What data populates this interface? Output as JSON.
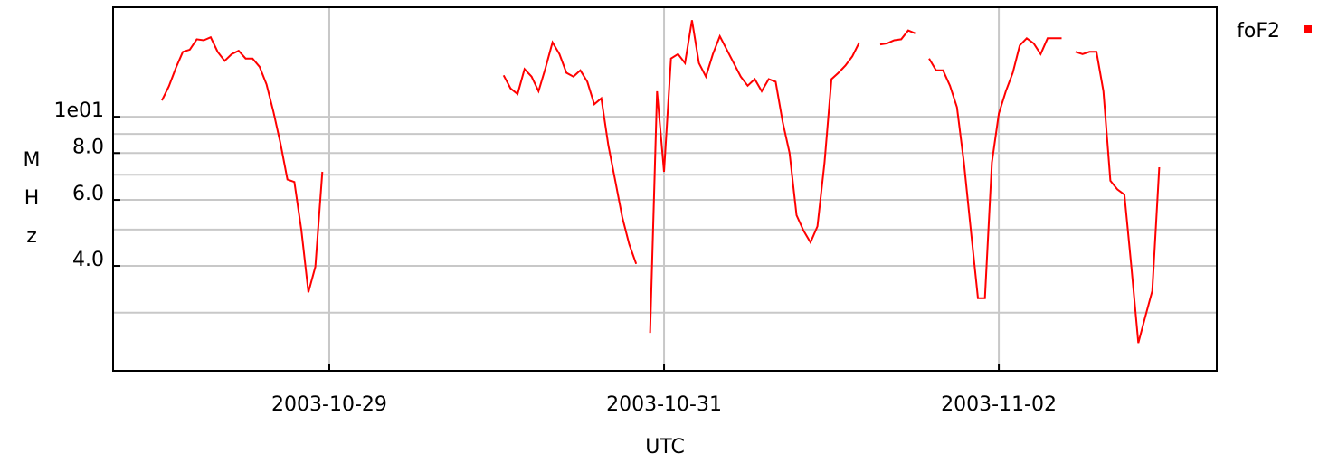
{
  "chart_data": {
    "type": "line",
    "log_y": true,
    "grid": true,
    "legend": "top-right",
    "xlabel": "UTC",
    "ylabel": "MHz",
    "xlim": [
      "2003-10-27T17:00Z",
      "2003-11-03T07:15Z"
    ],
    "xticks": [
      "2003-10-29",
      "2003-10-31",
      "2003-11-02"
    ],
    "ylim": [
      2.1,
      19.6
    ],
    "yticks": [
      {
        "value": 10,
        "label": "1e01"
      },
      {
        "value": 8,
        "label": "8.0"
      },
      {
        "value": 6,
        "label": "6.0"
      },
      {
        "value": 4,
        "label": "4.0"
      }
    ],
    "yminor": [
      9,
      7,
      5,
      3
    ],
    "x": [
      "2003-10-28T00:00Z",
      "2003-10-28T01:00Z",
      "2003-10-28T02:00Z",
      "2003-10-28T03:00Z",
      "2003-10-28T04:00Z",
      "2003-10-28T05:00Z",
      "2003-10-28T06:00Z",
      "2003-10-28T07:00Z",
      "2003-10-28T08:00Z",
      "2003-10-28T09:00Z",
      "2003-10-28T10:00Z",
      "2003-10-28T11:00Z",
      "2003-10-28T12:00Z",
      "2003-10-28T13:00Z",
      "2003-10-28T14:00Z",
      "2003-10-28T15:00Z",
      "2003-10-28T16:00Z",
      "2003-10-28T17:00Z",
      "2003-10-28T18:00Z",
      "2003-10-28T19:00Z",
      "2003-10-28T20:00Z",
      "2003-10-28T21:00Z",
      "2003-10-28T22:00Z",
      "2003-10-28T23:00Z",
      "2003-10-29T12:00Z",
      "2003-10-30T01:00Z",
      "2003-10-30T02:00Z",
      "2003-10-30T03:00Z",
      "2003-10-30T04:00Z",
      "2003-10-30T05:00Z",
      "2003-10-30T06:00Z",
      "2003-10-30T07:00Z",
      "2003-10-30T08:00Z",
      "2003-10-30T09:00Z",
      "2003-10-30T10:00Z",
      "2003-10-30T11:00Z",
      "2003-10-30T12:00Z",
      "2003-10-30T13:00Z",
      "2003-10-30T14:00Z",
      "2003-10-30T15:00Z",
      "2003-10-30T16:00Z",
      "2003-10-30T17:00Z",
      "2003-10-30T18:00Z",
      "2003-10-30T19:00Z",
      "2003-10-30T20:00Z",
      "2003-10-30T21:00Z",
      "2003-10-30T22:00Z",
      "2003-10-30T23:00Z",
      "2003-10-31T00:00Z",
      "2003-10-31T01:00Z",
      "2003-10-31T02:00Z",
      "2003-10-31T03:00Z",
      "2003-10-31T04:00Z",
      "2003-10-31T05:00Z",
      "2003-10-31T06:00Z",
      "2003-10-31T07:00Z",
      "2003-10-31T08:00Z",
      "2003-10-31T09:00Z",
      "2003-10-31T10:00Z",
      "2003-10-31T11:00Z",
      "2003-10-31T12:00Z",
      "2003-10-31T13:00Z",
      "2003-10-31T14:00Z",
      "2003-10-31T15:00Z",
      "2003-10-31T16:00Z",
      "2003-10-31T17:00Z",
      "2003-10-31T18:00Z",
      "2003-10-31T19:00Z",
      "2003-10-31T20:00Z",
      "2003-10-31T21:00Z",
      "2003-10-31T22:00Z",
      "2003-10-31T23:00Z",
      "2003-11-01T00:00Z",
      "2003-11-01T01:00Z",
      "2003-11-01T02:00Z",
      "2003-11-01T03:00Z",
      "2003-11-01T04:00Z",
      "2003-11-01T05:00Z",
      "2003-11-01T07:00Z",
      "2003-11-01T08:00Z",
      "2003-11-01T09:00Z",
      "2003-11-01T10:00Z",
      "2003-11-01T11:00Z",
      "2003-11-01T12:00Z",
      "2003-11-01T13:00Z",
      "2003-11-01T14:00Z",
      "2003-11-01T15:00Z",
      "2003-11-01T16:00Z",
      "2003-11-01T17:00Z",
      "2003-11-01T18:00Z",
      "2003-11-01T19:00Z",
      "2003-11-01T20:00Z",
      "2003-11-01T21:00Z",
      "2003-11-01T22:00Z",
      "2003-11-01T23:00Z",
      "2003-11-02T00:00Z",
      "2003-11-02T01:00Z",
      "2003-11-02T02:00Z",
      "2003-11-02T03:00Z",
      "2003-11-02T04:00Z",
      "2003-11-02T05:00Z",
      "2003-11-02T06:00Z",
      "2003-11-02T07:00Z",
      "2003-11-02T08:00Z",
      "2003-11-02T09:00Z",
      "2003-11-02T10:00Z",
      "2003-11-02T11:00Z",
      "2003-11-02T12:00Z",
      "2003-11-02T13:00Z",
      "2003-11-02T14:00Z",
      "2003-11-02T15:00Z",
      "2003-11-02T16:00Z",
      "2003-11-02T17:00Z",
      "2003-11-02T18:00Z",
      "2003-11-02T19:00Z",
      "2003-11-02T20:00Z",
      "2003-11-02T21:00Z",
      "2003-11-02T22:00Z",
      "2003-11-02T23:00Z"
    ],
    "series": [
      {
        "name": "foF2",
        "color": "#ff0000",
        "values": [
          11.05,
          12.07,
          13.5,
          14.9,
          15.1,
          16.1,
          16.0,
          16.3,
          14.9,
          14.1,
          14.7,
          15.0,
          14.3,
          14.3,
          13.6,
          12.2,
          10.3,
          8.5,
          6.8,
          6.7,
          4.97,
          3.4,
          3.98,
          7.13,
          null,
          12.9,
          11.9,
          11.5,
          13.4,
          12.8,
          11.7,
          13.5,
          15.8,
          14.7,
          13.1,
          12.8,
          13.3,
          12.4,
          10.8,
          11.2,
          8.4,
          6.75,
          5.4,
          4.57,
          4.05,
          null,
          2.65,
          11.7,
          7.13,
          14.3,
          14.7,
          13.9,
          18.1,
          13.9,
          12.8,
          14.7,
          16.4,
          15.1,
          13.9,
          12.8,
          12.1,
          12.6,
          11.7,
          12.6,
          12.4,
          9.7,
          8.0,
          5.46,
          4.97,
          4.62,
          5.1,
          7.54,
          12.6,
          13.1,
          13.7,
          14.5,
          15.8,
          null,
          15.6,
          15.7,
          16.0,
          16.1,
          17.0,
          16.7,
          null,
          14.3,
          13.3,
          13.3,
          12.1,
          10.6,
          7.54,
          4.97,
          3.28,
          3.28,
          7.54,
          10.2,
          11.7,
          13.1,
          15.5,
          16.2,
          15.7,
          14.7,
          16.2,
          16.2,
          16.2,
          null,
          14.9,
          14.7,
          14.9,
          14.9,
          11.7,
          6.75,
          6.4,
          6.2,
          3.98,
          2.49,
          2.93,
          3.43,
          7.33
        ]
      }
    ]
  }
}
